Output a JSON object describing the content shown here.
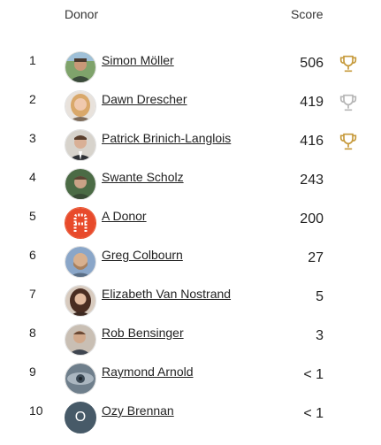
{
  "header": {
    "donor_label": "Donor",
    "score_label": "Score"
  },
  "colors": {
    "gold": "#c69a3b",
    "silver": "#b5b5b5",
    "text": "#222222"
  },
  "donors": [
    {
      "rank": "1",
      "name": "Simon Möller",
      "score": "506",
      "trophy": "gold-trophy-icon",
      "avatar": "photo"
    },
    {
      "rank": "2",
      "name": "Dawn Drescher",
      "score": "419",
      "trophy": "silver-trophy-icon",
      "avatar": "photo"
    },
    {
      "rank": "3",
      "name": "Patrick Brinich-Langlois",
      "score": "416",
      "trophy": "bronze-trophy-icon",
      "avatar": "photo"
    },
    {
      "rank": "4",
      "name": "Swante Scholz",
      "score": "243",
      "avatar": "photo"
    },
    {
      "rank": "5",
      "name": "A Donor",
      "score": "200",
      "avatar": "logo"
    },
    {
      "rank": "6",
      "name": "Greg Colbourn",
      "score": "27",
      "avatar": "photo"
    },
    {
      "rank": "7",
      "name": "Elizabeth Van Nostrand",
      "score": "5",
      "avatar": "photo"
    },
    {
      "rank": "8",
      "name": "Rob Bensinger",
      "score": "3",
      "avatar": "photo"
    },
    {
      "rank": "9",
      "name": "Raymond Arnold",
      "score": "< 1",
      "avatar": "photo"
    },
    {
      "rank": "10",
      "name": "Ozy Brennan",
      "score": "< 1",
      "avatar": "initial",
      "initial": "O"
    }
  ]
}
